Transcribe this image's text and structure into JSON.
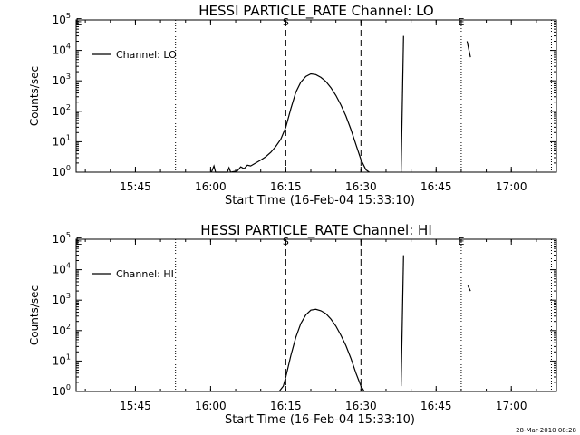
{
  "footer": {
    "timestamp": "28-Mar-2010 08:28"
  },
  "chart_data": [
    {
      "type": "line",
      "title": "HESSI PARTICLE_RATE Channel: LO",
      "xlabel": "Start Time (16-Feb-04 15:33:10)",
      "ylabel": "Counts/sec",
      "yscale": "log",
      "ylim": [
        1,
        100000
      ],
      "xlim": [
        "15:33:10",
        "17:09:00"
      ],
      "xticks": [
        "15:45",
        "16:00",
        "16:15",
        "16:30",
        "16:45",
        "17:00"
      ],
      "yticks": [
        "10^0",
        "10^1",
        "10^2",
        "10^3",
        "10^4",
        "10^5"
      ],
      "grid": false,
      "legend_position": "top-left",
      "series": [
        {
          "name": "Channel: LO",
          "style": "solid",
          "points": [
            [
              "16:00:10",
              1.0
            ],
            [
              "16:00:40",
              1.6
            ],
            [
              "16:01:00",
              1.0
            ],
            [
              "16:03:20",
              1.0
            ],
            [
              "16:03:40",
              1.4
            ],
            [
              "16:04:00",
              1.0
            ],
            [
              "16:05:20",
              1.1
            ],
            [
              "16:06:00",
              1.5
            ],
            [
              "16:06:40",
              1.3
            ],
            [
              "16:07:20",
              1.7
            ],
            [
              "16:08:00",
              1.6
            ],
            [
              "16:09:00",
              2.0
            ],
            [
              "16:10:00",
              2.5
            ],
            [
              "16:11:00",
              3.2
            ],
            [
              "16:12:00",
              4.5
            ],
            [
              "16:13:00",
              7
            ],
            [
              "16:14:00",
              12
            ],
            [
              "16:15:00",
              30
            ],
            [
              "16:16:00",
              120
            ],
            [
              "16:17:00",
              420
            ],
            [
              "16:18:00",
              900
            ],
            [
              "16:19:00",
              1400
            ],
            [
              "16:20:00",
              1700
            ],
            [
              "16:21:00",
              1600
            ],
            [
              "16:22:00",
              1300
            ],
            [
              "16:23:00",
              950
            ],
            [
              "16:24:00",
              600
            ],
            [
              "16:25:00",
              330
            ],
            [
              "16:26:00",
              160
            ],
            [
              "16:27:00",
              70
            ],
            [
              "16:28:00",
              25
            ],
            [
              "16:29:00",
              8
            ],
            [
              "16:30:00",
              2.6
            ],
            [
              "16:31:00",
              1.2
            ],
            [
              "16:31:40",
              1.0
            ]
          ]
        },
        {
          "name": "",
          "style": "solid",
          "points": [
            [
              "16:38:00",
              1.0
            ],
            [
              "16:38:30",
              30000
            ]
          ]
        },
        {
          "name": "",
          "style": "solid",
          "points": [
            [
              "16:51:10",
              20000
            ],
            [
              "16:51:50",
              6000
            ]
          ]
        }
      ],
      "markers": [
        {
          "time": "15:53:00",
          "style": "dotted",
          "label": ""
        },
        {
          "time": "16:15:00",
          "style": "dashed",
          "label": "S"
        },
        {
          "time": "16:30:00",
          "style": "dashed",
          "label": ""
        },
        {
          "time": "16:50:00",
          "style": "dotted",
          "label": "E"
        },
        {
          "time": "17:08:00",
          "style": "dotted",
          "label": ""
        }
      ],
      "corner_label": "E"
    },
    {
      "type": "line",
      "title": "HESSI PARTICLE_RATE Channel: HI",
      "xlabel": "Start Time (16-Feb-04 15:33:10)",
      "ylabel": "Counts/sec",
      "yscale": "log",
      "ylim": [
        1,
        100000
      ],
      "xlim": [
        "15:33:10",
        "17:09:00"
      ],
      "xticks": [
        "15:45",
        "16:00",
        "16:15",
        "16:30",
        "16:45",
        "17:00"
      ],
      "yticks": [
        "10^0",
        "10^1",
        "10^2",
        "10^3",
        "10^4",
        "10^5"
      ],
      "grid": false,
      "legend_position": "top-left",
      "series": [
        {
          "name": "Channel: HI",
          "style": "solid",
          "points": [
            [
              "16:13:40",
              0.8
            ],
            [
              "16:14:30",
              1.5
            ],
            [
              "16:15:00",
              3
            ],
            [
              "16:16:00",
              15
            ],
            [
              "16:17:00",
              60
            ],
            [
              "16:18:00",
              170
            ],
            [
              "16:19:00",
              330
            ],
            [
              "16:20:00",
              470
            ],
            [
              "16:21:00",
              500
            ],
            [
              "16:22:00",
              450
            ],
            [
              "16:23:00",
              360
            ],
            [
              "16:24:00",
              240
            ],
            [
              "16:25:00",
              140
            ],
            [
              "16:26:00",
              70
            ],
            [
              "16:27:00",
              32
            ],
            [
              "16:28:00",
              12
            ],
            [
              "16:29:00",
              4
            ],
            [
              "16:30:00",
              1.5
            ],
            [
              "16:30:40",
              0.9
            ]
          ]
        },
        {
          "name": "",
          "style": "solid",
          "points": [
            [
              "16:38:00",
              1.5
            ],
            [
              "16:38:30",
              30000
            ]
          ]
        },
        {
          "name": "",
          "style": "solid",
          "points": [
            [
              "16:51:20",
              3000
            ],
            [
              "16:51:50",
              2000
            ]
          ]
        }
      ],
      "markers": [
        {
          "time": "15:53:00",
          "style": "dotted",
          "label": ""
        },
        {
          "time": "16:15:00",
          "style": "dashed",
          "label": "S"
        },
        {
          "time": "16:30:00",
          "style": "dashed",
          "label": ""
        },
        {
          "time": "16:50:00",
          "style": "dotted",
          "label": "E"
        },
        {
          "time": "17:08:00",
          "style": "dotted",
          "label": ""
        }
      ],
      "corner_label": "E"
    }
  ]
}
